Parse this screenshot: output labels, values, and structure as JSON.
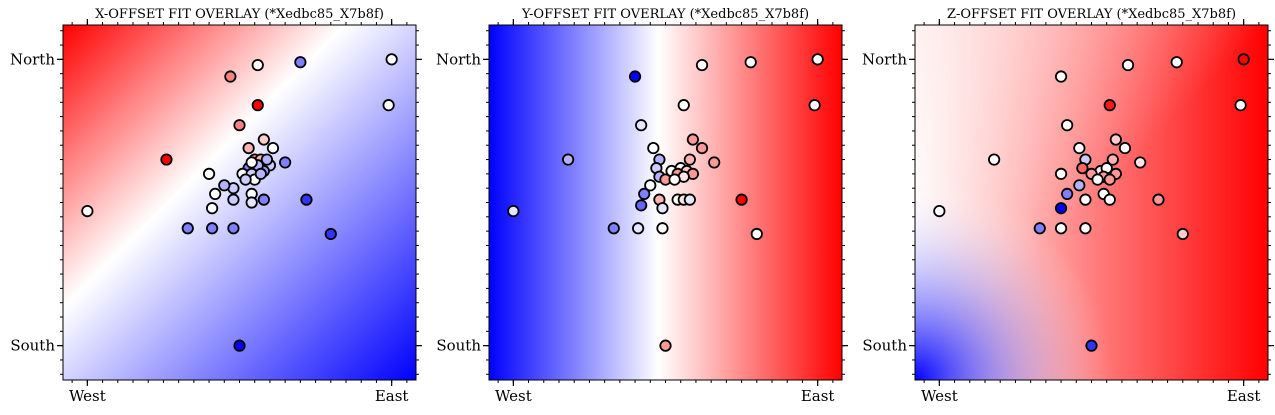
{
  "colors": {
    "low": "#0000ff",
    "mid": "#ffffff",
    "high": "#ff0000",
    "marker_edge": "#000000"
  },
  "chart_data": [
    {
      "type": "scatter",
      "title": "X-OFFSET FIT OVERLAY (*Xedbc85_X7b8f)",
      "xlabel": "",
      "ylabel": "",
      "xlim": [
        -0.08,
        1.08
      ],
      "ylim": [
        -0.12,
        1.12
      ],
      "xticks": [
        {
          "v": 0,
          "label": "West"
        },
        {
          "v": 1,
          "label": "East"
        }
      ],
      "yticks": [
        {
          "v": 0,
          "label": "South"
        },
        {
          "v": 1,
          "label": "North"
        }
      ],
      "background": {
        "kind": "diagonal",
        "vmin": -1,
        "vmax": 1
      },
      "points": [
        {
          "x": 1.0,
          "y": 1.0,
          "v": 0.0
        },
        {
          "x": 0.99,
          "y": 0.84,
          "v": 0.0
        },
        {
          "x": 0.7,
          "y": 0.99,
          "v": -0.5
        },
        {
          "x": 0.56,
          "y": 0.98,
          "v": 0.0
        },
        {
          "x": 0.47,
          "y": 0.94,
          "v": 0.5
        },
        {
          "x": 0.56,
          "y": 0.84,
          "v": 1.0
        },
        {
          "x": 0.5,
          "y": 0.77,
          "v": 0.5
        },
        {
          "x": 0.26,
          "y": 0.65,
          "v": 1.0
        },
        {
          "x": 0.0,
          "y": 0.47,
          "v": 0.0
        },
        {
          "x": 0.48,
          "y": 0.55,
          "v": -0.2
        },
        {
          "x": 0.53,
          "y": 0.69,
          "v": 0.3
        },
        {
          "x": 0.58,
          "y": 0.72,
          "v": 0.2
        },
        {
          "x": 0.61,
          "y": 0.69,
          "v": 0.0
        },
        {
          "x": 0.65,
          "y": 0.64,
          "v": -0.5
        },
        {
          "x": 0.55,
          "y": 0.65,
          "v": 0.4
        },
        {
          "x": 0.57,
          "y": 0.65,
          "v": 0.3
        },
        {
          "x": 0.53,
          "y": 0.62,
          "v": -0.5
        },
        {
          "x": 0.6,
          "y": 0.63,
          "v": -0.2
        },
        {
          "x": 0.51,
          "y": 0.6,
          "v": 0.0
        },
        {
          "x": 0.58,
          "y": 0.61,
          "v": -0.4
        },
        {
          "x": 0.56,
          "y": 0.63,
          "v": -0.3
        },
        {
          "x": 0.54,
          "y": 0.6,
          "v": -0.2
        },
        {
          "x": 0.55,
          "y": 0.58,
          "v": 0.0
        },
        {
          "x": 0.54,
          "y": 0.64,
          "v": 0.0
        },
        {
          "x": 0.57,
          "y": 0.6,
          "v": -0.3
        },
        {
          "x": 0.59,
          "y": 0.65,
          "v": -0.3
        },
        {
          "x": 0.52,
          "y": 0.58,
          "v": -0.2
        },
        {
          "x": 0.4,
          "y": 0.6,
          "v": 0.0
        },
        {
          "x": 0.45,
          "y": 0.56,
          "v": -0.3
        },
        {
          "x": 0.42,
          "y": 0.53,
          "v": 0.0
        },
        {
          "x": 0.48,
          "y": 0.51,
          "v": -0.2
        },
        {
          "x": 0.54,
          "y": 0.53,
          "v": 0.0
        },
        {
          "x": 0.58,
          "y": 0.51,
          "v": -0.5
        },
        {
          "x": 0.41,
          "y": 0.48,
          "v": 0.0
        },
        {
          "x": 0.54,
          "y": 0.5,
          "v": -0.1
        },
        {
          "x": 0.72,
          "y": 0.51,
          "v": -0.8
        },
        {
          "x": 0.33,
          "y": 0.41,
          "v": -0.5
        },
        {
          "x": 0.41,
          "y": 0.41,
          "v": -0.5
        },
        {
          "x": 0.48,
          "y": 0.41,
          "v": -0.5
        },
        {
          "x": 0.8,
          "y": 0.39,
          "v": -0.8
        },
        {
          "x": 0.5,
          "y": 0.0,
          "v": -1.0
        }
      ]
    },
    {
      "type": "scatter",
      "title": "Y-OFFSET FIT OVERLAY (*Xedbc85_X7b8f)",
      "xlabel": "",
      "ylabel": "",
      "xlim": [
        -0.08,
        1.08
      ],
      "ylim": [
        -0.12,
        1.12
      ],
      "xticks": [
        {
          "v": 0,
          "label": "West"
        },
        {
          "v": 1,
          "label": "East"
        }
      ],
      "yticks": [
        {
          "v": 0,
          "label": "South"
        },
        {
          "v": 1,
          "label": "North"
        }
      ],
      "background": {
        "kind": "horizontal",
        "vmin": -1,
        "vmax": 1
      },
      "points": [
        {
          "x": 1.0,
          "y": 1.0,
          "v": 0.0
        },
        {
          "x": 0.99,
          "y": 0.84,
          "v": 0.0
        },
        {
          "x": 0.78,
          "y": 0.99,
          "v": 0.0
        },
        {
          "x": 0.62,
          "y": 0.98,
          "v": 0.0
        },
        {
          "x": 0.4,
          "y": 0.94,
          "v": -1.0
        },
        {
          "x": 0.56,
          "y": 0.84,
          "v": 0.0
        },
        {
          "x": 0.42,
          "y": 0.77,
          "v": -0.1
        },
        {
          "x": 0.18,
          "y": 0.65,
          "v": -0.3
        },
        {
          "x": 0.0,
          "y": 0.47,
          "v": -0.1
        },
        {
          "x": 0.46,
          "y": 0.69,
          "v": 0.0
        },
        {
          "x": 0.59,
          "y": 0.72,
          "v": 0.4
        },
        {
          "x": 0.62,
          "y": 0.69,
          "v": 0.4
        },
        {
          "x": 0.66,
          "y": 0.64,
          "v": 0.4
        },
        {
          "x": 0.48,
          "y": 0.65,
          "v": -0.3
        },
        {
          "x": 0.58,
          "y": 0.65,
          "v": 0.3
        },
        {
          "x": 0.47,
          "y": 0.62,
          "v": -0.2
        },
        {
          "x": 0.52,
          "y": 0.61,
          "v": 0.0
        },
        {
          "x": 0.55,
          "y": 0.62,
          "v": 0.0
        },
        {
          "x": 0.57,
          "y": 0.61,
          "v": 0.2
        },
        {
          "x": 0.59,
          "y": 0.6,
          "v": 0.4
        },
        {
          "x": 0.54,
          "y": 0.6,
          "v": 0.4
        },
        {
          "x": 0.56,
          "y": 0.59,
          "v": 0.1
        },
        {
          "x": 0.48,
          "y": 0.59,
          "v": -0.3
        },
        {
          "x": 0.5,
          "y": 0.58,
          "v": 0.4
        },
        {
          "x": 0.53,
          "y": 0.58,
          "v": 0.0
        },
        {
          "x": 0.45,
          "y": 0.56,
          "v": 0.0
        },
        {
          "x": 0.43,
          "y": 0.53,
          "v": -0.5
        },
        {
          "x": 0.48,
          "y": 0.51,
          "v": 0.3
        },
        {
          "x": 0.54,
          "y": 0.51,
          "v": 0.0
        },
        {
          "x": 0.56,
          "y": 0.51,
          "v": 0.1
        },
        {
          "x": 0.42,
          "y": 0.49,
          "v": -0.6
        },
        {
          "x": 0.49,
          "y": 0.48,
          "v": -0.1
        },
        {
          "x": 0.58,
          "y": 0.51,
          "v": -0.1
        },
        {
          "x": 0.75,
          "y": 0.51,
          "v": 1.0
        },
        {
          "x": 0.33,
          "y": 0.41,
          "v": -0.5
        },
        {
          "x": 0.41,
          "y": 0.41,
          "v": -0.1
        },
        {
          "x": 0.49,
          "y": 0.41,
          "v": 0.0
        },
        {
          "x": 0.8,
          "y": 0.39,
          "v": 0.0
        },
        {
          "x": 0.5,
          "y": 0.0,
          "v": 0.4
        }
      ]
    },
    {
      "type": "scatter",
      "title": "Z-OFFSET FIT OVERLAY (*Xedbc85_X7b8f)",
      "xlabel": "",
      "ylabel": "",
      "xlim": [
        -0.08,
        1.08
      ],
      "ylim": [
        -0.12,
        1.12
      ],
      "xticks": [
        {
          "v": 0,
          "label": "West"
        },
        {
          "v": 1,
          "label": "East"
        }
      ],
      "yticks": [
        {
          "v": 0,
          "label": "South"
        },
        {
          "v": 1,
          "label": "North"
        }
      ],
      "background": {
        "kind": "curved",
        "vmin": -1,
        "vmax": 1
      },
      "points": [
        {
          "x": 1.0,
          "y": 1.0,
          "v": 1.0
        },
        {
          "x": 0.99,
          "y": 0.84,
          "v": 0.0
        },
        {
          "x": 0.78,
          "y": 0.99,
          "v": 0.0
        },
        {
          "x": 0.62,
          "y": 0.98,
          "v": 0.0
        },
        {
          "x": 0.4,
          "y": 0.94,
          "v": 0.0
        },
        {
          "x": 0.56,
          "y": 0.84,
          "v": 0.9
        },
        {
          "x": 0.42,
          "y": 0.77,
          "v": 0.0
        },
        {
          "x": 0.18,
          "y": 0.65,
          "v": 0.0
        },
        {
          "x": 0.0,
          "y": 0.47,
          "v": 0.0
        },
        {
          "x": 0.46,
          "y": 0.69,
          "v": 0.0
        },
        {
          "x": 0.58,
          "y": 0.72,
          "v": 0.2
        },
        {
          "x": 0.61,
          "y": 0.69,
          "v": 0.0
        },
        {
          "x": 0.66,
          "y": 0.64,
          "v": 0.1
        },
        {
          "x": 0.48,
          "y": 0.65,
          "v": -0.2
        },
        {
          "x": 0.57,
          "y": 0.65,
          "v": 0.3
        },
        {
          "x": 0.47,
          "y": 0.62,
          "v": 0.6
        },
        {
          "x": 0.53,
          "y": 0.61,
          "v": 0.1
        },
        {
          "x": 0.55,
          "y": 0.62,
          "v": 0.0
        },
        {
          "x": 0.58,
          "y": 0.6,
          "v": 0.4
        },
        {
          "x": 0.5,
          "y": 0.6,
          "v": 0.4
        },
        {
          "x": 0.54,
          "y": 0.59,
          "v": 0.4
        },
        {
          "x": 0.56,
          "y": 0.58,
          "v": 0.4
        },
        {
          "x": 0.52,
          "y": 0.58,
          "v": 0.0
        },
        {
          "x": 0.4,
          "y": 0.6,
          "v": 0.0
        },
        {
          "x": 0.46,
          "y": 0.56,
          "v": -0.3
        },
        {
          "x": 0.42,
          "y": 0.53,
          "v": -0.5
        },
        {
          "x": 0.48,
          "y": 0.51,
          "v": 0.0
        },
        {
          "x": 0.54,
          "y": 0.53,
          "v": 0.0
        },
        {
          "x": 0.56,
          "y": 0.51,
          "v": 0.0
        },
        {
          "x": 0.4,
          "y": 0.48,
          "v": -1.0
        },
        {
          "x": 0.72,
          "y": 0.51,
          "v": 0.4
        },
        {
          "x": 0.33,
          "y": 0.41,
          "v": -0.5
        },
        {
          "x": 0.4,
          "y": 0.41,
          "v": 0.0
        },
        {
          "x": 0.48,
          "y": 0.41,
          "v": 0.0
        },
        {
          "x": 0.8,
          "y": 0.39,
          "v": 0.2
        },
        {
          "x": 0.5,
          "y": 0.0,
          "v": -0.8
        }
      ]
    }
  ]
}
